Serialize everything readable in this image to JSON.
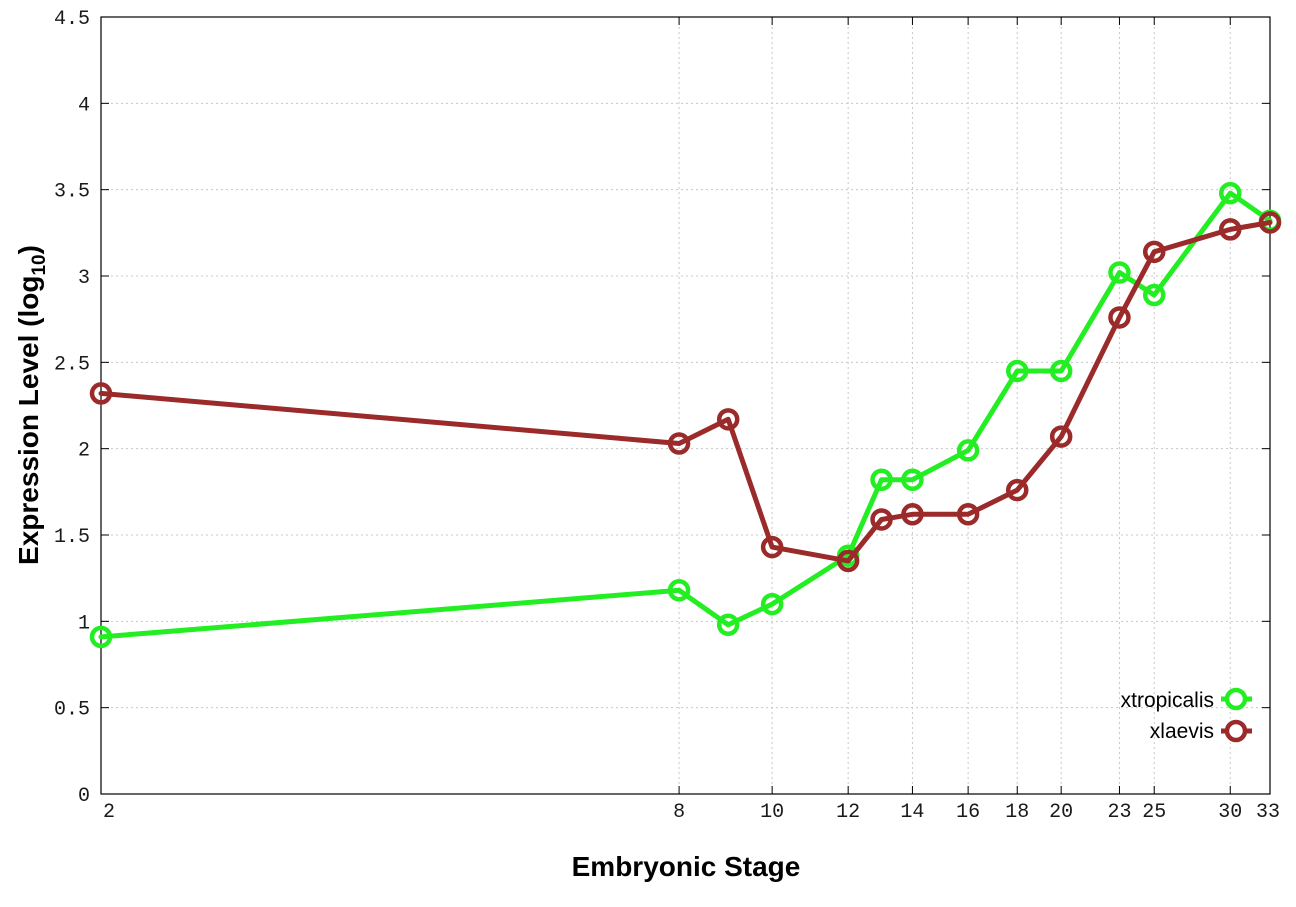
{
  "chart_data": {
    "type": "line",
    "title": "",
    "xlabel": "Embryonic Stage",
    "ylabel_main": "Expression Level (log",
    "ylabel_sub": "10",
    "ylabel_close": ")",
    "xlim": [
      2,
      33
    ],
    "ylim": [
      0,
      4.5
    ],
    "x_scale": "log",
    "grid": true,
    "legend_position": "bottom-right",
    "x_ticks": [
      {
        "value": 2,
        "label": "2"
      },
      {
        "value": 8,
        "label": "8"
      },
      {
        "value": 10,
        "label": "10"
      },
      {
        "value": 12,
        "label": "12"
      },
      {
        "value": 14,
        "label": "14"
      },
      {
        "value": 16,
        "label": "16"
      },
      {
        "value": 18,
        "label": "18"
      },
      {
        "value": 20,
        "label": "20"
      },
      {
        "value": 23,
        "label": "23"
      },
      {
        "value": 25,
        "label": "25"
      },
      {
        "value": 30,
        "label": "30"
      },
      {
        "value": 33,
        "label": "33"
      }
    ],
    "y_ticks": [
      {
        "value": 0,
        "label": "0"
      },
      {
        "value": 0.5,
        "label": "0.5"
      },
      {
        "value": 1,
        "label": "1"
      },
      {
        "value": 1.5,
        "label": "1.5"
      },
      {
        "value": 2,
        "label": "2"
      },
      {
        "value": 2.5,
        "label": "2.5"
      },
      {
        "value": 3,
        "label": "3"
      },
      {
        "value": 3.5,
        "label": "3.5"
      },
      {
        "value": 4,
        "label": "4"
      },
      {
        "value": 4.5,
        "label": "4.5"
      }
    ],
    "series": [
      {
        "name": "xtropicalis",
        "color": "#22ee22",
        "x": [
          2,
          8,
          9,
          10,
          12,
          13,
          14,
          16,
          18,
          20,
          23,
          25,
          30,
          33
        ],
        "y": [
          0.91,
          1.18,
          0.98,
          1.1,
          1.38,
          1.82,
          1.82,
          1.99,
          2.45,
          2.45,
          3.02,
          2.89,
          3.48,
          3.32
        ]
      },
      {
        "name": "xlaevis",
        "color": "#9b2a2a",
        "x": [
          2,
          8,
          9,
          10,
          12,
          13,
          14,
          16,
          18,
          20,
          23,
          25,
          30,
          33
        ],
        "y": [
          2.32,
          2.03,
          2.17,
          1.43,
          1.35,
          1.59,
          1.62,
          1.62,
          1.76,
          2.07,
          2.76,
          3.14,
          3.27,
          3.31
        ]
      }
    ]
  }
}
